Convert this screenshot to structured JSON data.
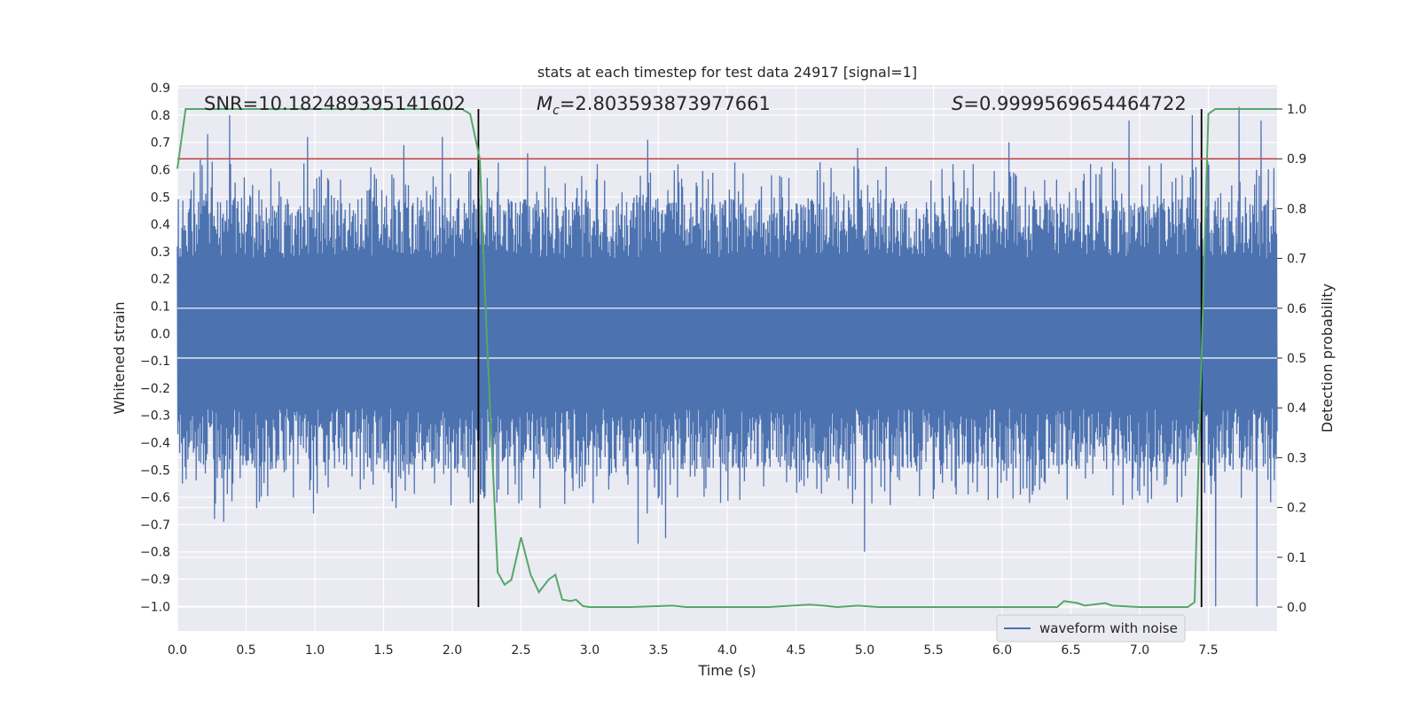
{
  "chart_data": {
    "type": "line",
    "title": "stats at each timestep for test data 24917 [signal=1]",
    "xlabel": "Time (s)",
    "ylabel_left": "Whitened strain",
    "ylabel_right": "Detection probability",
    "xlim": [
      0.0,
      8.0
    ],
    "ylim_left": [
      -1.09,
      0.91
    ],
    "ylim_right": [
      -0.048,
      1.048
    ],
    "x_ticks": [
      "0.0",
      "0.5",
      "1.0",
      "1.5",
      "2.0",
      "2.5",
      "3.0",
      "3.5",
      "4.0",
      "4.5",
      "5.0",
      "5.5",
      "6.0",
      "6.5",
      "7.0",
      "7.5"
    ],
    "y_left_ticks": [
      "0.9",
      "0.8",
      "0.7",
      "0.6",
      "0.5",
      "0.4",
      "0.3",
      "0.2",
      "0.1",
      "0.0",
      "−0.1",
      "−0.2",
      "−0.3",
      "−0.4",
      "−0.5",
      "−0.6",
      "−0.7",
      "−0.8",
      "−0.9",
      "−1.0"
    ],
    "y_right_ticks": [
      "0.0",
      "0.1",
      "0.2",
      "0.3",
      "0.4",
      "0.5",
      "0.6",
      "0.7",
      "0.8",
      "0.9",
      "1.0"
    ],
    "grid": true,
    "background": "#eaeaf2",
    "legend": {
      "placement": "lower-right",
      "entries": [
        "waveform with noise"
      ]
    },
    "annotations": {
      "snr": "SNR=10.182489395141602",
      "mc_symbol": "M",
      "mc_sub": "c",
      "mc_value": "=2.803593873977661",
      "s_symbol": "S",
      "s_value": "=0.9999569654464722"
    },
    "series": [
      {
        "name": "waveform with noise",
        "axis": "left",
        "style": "noise-trace",
        "color": "#4c72b0",
        "envelope": [
          0.5,
          -0.5
        ],
        "x_range": [
          0.0,
          8.0
        ],
        "peaks": [
          {
            "x": 0.04,
            "y": -0.55
          },
          {
            "x": 0.12,
            "y": 0.59
          },
          {
            "x": 0.17,
            "y": 0.64
          },
          {
            "x": 0.22,
            "y": 0.73
          },
          {
            "x": 0.27,
            "y": -0.68
          },
          {
            "x": 0.38,
            "y": 0.8
          },
          {
            "x": 0.34,
            "y": -0.69
          },
          {
            "x": 0.58,
            "y": -0.64
          },
          {
            "x": 0.95,
            "y": 0.72
          },
          {
            "x": 0.99,
            "y": -0.66
          },
          {
            "x": 1.65,
            "y": 0.69
          },
          {
            "x": 1.59,
            "y": -0.64
          },
          {
            "x": 1.93,
            "y": 0.72
          },
          {
            "x": 2.55,
            "y": 0.66
          },
          {
            "x": 2.64,
            "y": -0.64
          },
          {
            "x": 3.42,
            "y": -0.66
          },
          {
            "x": 3.35,
            "y": -0.77
          },
          {
            "x": 3.55,
            "y": -0.75
          },
          {
            "x": 3.42,
            "y": 0.71
          },
          {
            "x": 4.95,
            "y": 0.68
          },
          {
            "x": 5.0,
            "y": -0.8
          },
          {
            "x": 6.05,
            "y": 0.7
          },
          {
            "x": 6.92,
            "y": 0.78
          },
          {
            "x": 7.38,
            "y": 0.8
          },
          {
            "x": 7.55,
            "y": -1.0
          },
          {
            "x": 7.72,
            "y": 0.83
          },
          {
            "x": 7.85,
            "y": -1.0
          },
          {
            "x": 7.88,
            "y": 0.78
          }
        ]
      },
      {
        "name": "",
        "axis": "right",
        "color": "#55a868",
        "x": [
          0.0,
          0.06,
          0.15,
          0.5,
          1.0,
          1.5,
          2.0,
          2.07,
          2.13,
          2.2,
          2.25,
          2.3,
          2.33,
          2.38,
          2.43,
          2.5,
          2.57,
          2.63,
          2.7,
          2.75,
          2.8,
          2.86,
          2.9,
          2.95,
          3.0,
          3.1,
          3.3,
          3.6,
          3.7,
          4.0,
          4.3,
          4.6,
          4.7,
          4.8,
          4.95,
          5.1,
          5.5,
          6.0,
          6.4,
          6.45,
          6.55,
          6.6,
          6.75,
          6.8,
          7.0,
          7.35,
          7.4,
          7.45,
          7.5,
          7.55,
          8.0
        ],
        "y": [
          0.88,
          1.0,
          1.0,
          1.0,
          1.0,
          1.0,
          1.0,
          1.0,
          0.99,
          0.9,
          0.55,
          0.25,
          0.07,
          0.045,
          0.055,
          0.14,
          0.065,
          0.03,
          0.055,
          0.065,
          0.015,
          0.012,
          0.015,
          0.002,
          0.0,
          0.0,
          0.0,
          0.003,
          0.0,
          0.0,
          0.0,
          0.005,
          0.003,
          0.0,
          0.003,
          0.0,
          0.0,
          0.0,
          0.0,
          0.012,
          0.008,
          0.003,
          0.008,
          0.003,
          0.0,
          0.0,
          0.01,
          0.5,
          0.99,
          1.0,
          1.0
        ]
      },
      {
        "name": "",
        "axis": "right",
        "style": "hline",
        "color": "#c44e52",
        "y": 0.9
      }
    ],
    "vlines": [
      {
        "x": 2.19,
        "y_range": [
          0.0,
          1.0
        ],
        "color": "#000000"
      },
      {
        "x": 7.45,
        "y_range": [
          0.0,
          1.0
        ],
        "color": "#000000"
      }
    ]
  }
}
